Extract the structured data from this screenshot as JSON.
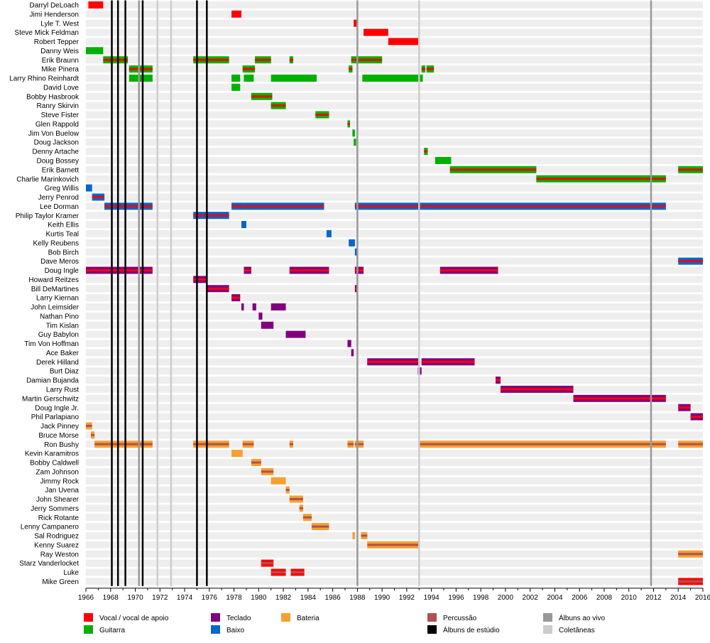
{
  "chart_data": {
    "type": "timeline",
    "xlim": [
      1966,
      2016
    ],
    "x_ticks": [
      "1966",
      "1968",
      "1970",
      "1972",
      "1974",
      "1976",
      "1978",
      "1980",
      "1982",
      "1984",
      "1986",
      "1988",
      "1990",
      "1992",
      "1994",
      "1996",
      "1998",
      "2000",
      "2002",
      "2004",
      "2006",
      "2008",
      "2010",
      "2012",
      "2014",
      "2016"
    ],
    "colors": {
      "vocal": "#ff0000",
      "guitar": "#00b000",
      "keys": "#800080",
      "bass": "#0066cc",
      "drums": "#f5a030",
      "percussion": "#b05050",
      "studio": "#000000",
      "live": "#999999",
      "compilation": "#cccccc",
      "row_bg": "#eeeeee"
    },
    "legend": [
      {
        "label": "Vocal / vocal de apoio",
        "color": "vocal"
      },
      {
        "label": "Guitarra",
        "color": "guitar"
      },
      {
        "label": "Teclado",
        "color": "keys"
      },
      {
        "label": "Baixo",
        "color": "bass"
      },
      {
        "label": "Bateria",
        "color": "drums"
      },
      {
        "label": "Percussão",
        "color": "percussion"
      },
      {
        "label": "Álbuns de estúdio",
        "color": "studio"
      },
      {
        "label": "Álbuns ao vivo",
        "color": "live"
      },
      {
        "label": "Coletâneas",
        "color": "compilation"
      }
    ],
    "studio_albums": [
      1968.1,
      1968.6,
      1969.2,
      1970.6,
      1975.0,
      1975.8
    ],
    "live_albums": [
      1970.3,
      1988.0,
      2011.8
    ],
    "compilations": [
      1971.8,
      1972.9,
      1993.0
    ],
    "members": [
      {
        "name": "Darryl DeLoach",
        "bars": [
          {
            "s": 1966.2,
            "e": 1967.4,
            "m": "vocal"
          }
        ]
      },
      {
        "name": "Jimi Henderson",
        "bars": [
          {
            "s": 1977.8,
            "e": 1978.6,
            "m": "vocal"
          }
        ]
      },
      {
        "name": "Lyle T. West",
        "bars": [
          {
            "s": 1987.7,
            "e": 1988.0,
            "m": "vocal"
          }
        ]
      },
      {
        "name": "Steve Mick Feldman",
        "bars": [
          {
            "s": 1988.5,
            "e": 1990.5,
            "m": "vocal"
          }
        ]
      },
      {
        "name": "Robert Tepper",
        "bars": [
          {
            "s": 1990.5,
            "e": 1993.0,
            "m": "vocal"
          }
        ]
      },
      {
        "name": "Danny Weis",
        "bars": [
          {
            "s": 1966.0,
            "e": 1967.4,
            "m": "guitar"
          }
        ]
      },
      {
        "name": "Erik Braunn",
        "bars": [
          {
            "s": 1967.4,
            "e": 1969.4,
            "m": "guitar",
            "a": "vocal"
          },
          {
            "s": 1974.7,
            "e": 1977.6,
            "m": "guitar",
            "a": "vocal"
          },
          {
            "s": 1979.7,
            "e": 1981.0,
            "m": "guitar",
            "a": "vocal"
          },
          {
            "s": 1982.5,
            "e": 1982.8,
            "m": "guitar",
            "a": "vocal"
          },
          {
            "s": 1987.5,
            "e": 1987.7,
            "m": "guitar",
            "a": "vocal"
          },
          {
            "s": 1987.7,
            "e": 1990.0,
            "m": "guitar",
            "a": "vocal"
          }
        ]
      },
      {
        "name": "Mike Pinera",
        "bars": [
          {
            "s": 1969.5,
            "e": 1971.4,
            "m": "guitar",
            "a": "vocal"
          },
          {
            "s": 1978.7,
            "e": 1979.7,
            "m": "guitar",
            "a": "vocal"
          },
          {
            "s": 1987.3,
            "e": 1987.6,
            "m": "guitar",
            "a": "vocal"
          },
          {
            "s": 1993.2,
            "e": 1993.5,
            "m": "guitar",
            "a": "vocal"
          },
          {
            "s": 1993.6,
            "e": 1994.2,
            "m": "guitar",
            "a": "vocal"
          }
        ]
      },
      {
        "name": "Larry Rhino Reinhardt",
        "bars": [
          {
            "s": 1969.5,
            "e": 1971.4,
            "m": "guitar"
          },
          {
            "s": 1977.8,
            "e": 1978.5,
            "m": "guitar"
          },
          {
            "s": 1978.8,
            "e": 1979.6,
            "m": "guitar"
          },
          {
            "s": 1981.0,
            "e": 1984.7,
            "m": "guitar"
          },
          {
            "s": 1988.4,
            "e": 1993.3,
            "m": "guitar"
          }
        ]
      },
      {
        "name": "David Love",
        "bars": [
          {
            "s": 1977.8,
            "e": 1978.5,
            "m": "guitar"
          }
        ]
      },
      {
        "name": "Bobby Hasbrook",
        "bars": [
          {
            "s": 1979.4,
            "e": 1981.1,
            "m": "guitar",
            "a": "vocal"
          }
        ]
      },
      {
        "name": "Ranry Skirvin",
        "bars": [
          {
            "s": 1981.0,
            "e": 1982.2,
            "m": "guitar",
            "a": "vocal"
          }
        ]
      },
      {
        "name": "Steve Fister",
        "bars": [
          {
            "s": 1984.6,
            "e": 1985.7,
            "m": "guitar",
            "a": "vocal"
          }
        ]
      },
      {
        "name": "Glen Rappold",
        "bars": [
          {
            "s": 1987.2,
            "e": 1987.4,
            "m": "guitar",
            "a": "vocal"
          }
        ]
      },
      {
        "name": "Jim Von Buelow",
        "bars": [
          {
            "s": 1987.6,
            "e": 1987.8,
            "m": "guitar"
          }
        ]
      },
      {
        "name": "Doug Jackson",
        "bars": [
          {
            "s": 1987.7,
            "e": 1987.9,
            "m": "guitar"
          }
        ]
      },
      {
        "name": "Denny Artache",
        "bars": [
          {
            "s": 1993.4,
            "e": 1993.7,
            "m": "guitar",
            "a": "vocal"
          }
        ]
      },
      {
        "name": "Doug Bossey",
        "bars": [
          {
            "s": 1994.3,
            "e": 1995.6,
            "m": "guitar"
          }
        ]
      },
      {
        "name": "Erik Barnett",
        "bars": [
          {
            "s": 1995.5,
            "e": 2002.5,
            "m": "guitar",
            "a": "vocal"
          },
          {
            "s": 2014.0,
            "e": 2016.0,
            "m": "guitar",
            "a": "vocal"
          }
        ]
      },
      {
        "name": "Charlie Marinkovich",
        "bars": [
          {
            "s": 2002.5,
            "e": 2013.0,
            "m": "guitar",
            "a": "vocal"
          }
        ]
      },
      {
        "name": "Greg Willis",
        "bars": [
          {
            "s": 1966.0,
            "e": 1966.5,
            "m": "bass"
          }
        ]
      },
      {
        "name": "Jerry Penrod",
        "bars": [
          {
            "s": 1966.5,
            "e": 1967.5,
            "m": "bass",
            "a": "vocal"
          }
        ]
      },
      {
        "name": "Lee Dorman",
        "bars": [
          {
            "s": 1967.5,
            "e": 1971.4,
            "m": "bass",
            "a": "vocal"
          },
          {
            "s": 1977.8,
            "e": 1978.8,
            "m": "bass",
            "a": "vocal"
          },
          {
            "s": 1978.8,
            "e": 1985.3,
            "m": "bass",
            "a": "vocal"
          },
          {
            "s": 1987.8,
            "e": 2013.0,
            "m": "bass",
            "a": "vocal"
          }
        ]
      },
      {
        "name": "Philip Taylor Kramer",
        "bars": [
          {
            "s": 1974.7,
            "e": 1977.6,
            "m": "bass",
            "a": "vocal"
          }
        ]
      },
      {
        "name": "Keith Ellis",
        "bars": [
          {
            "s": 1978.6,
            "e": 1979.0,
            "m": "bass"
          }
        ]
      },
      {
        "name": "Kurtis Teal",
        "bars": [
          {
            "s": 1985.5,
            "e": 1985.9,
            "m": "bass"
          }
        ]
      },
      {
        "name": "Kelly Reubens",
        "bars": [
          {
            "s": 1987.3,
            "e": 1987.8,
            "m": "bass"
          }
        ]
      },
      {
        "name": "Bob Birch",
        "bars": [
          {
            "s": 1987.8,
            "e": 1988.0,
            "m": "bass"
          }
        ]
      },
      {
        "name": "Dave Meros",
        "bars": [
          {
            "s": 2014.0,
            "e": 2016.0,
            "m": "bass",
            "a": "vocal"
          }
        ]
      },
      {
        "name": "Doug Ingle",
        "bars": [
          {
            "s": 1966.0,
            "e": 1971.4,
            "m": "keys",
            "a": "vocal"
          },
          {
            "s": 1978.8,
            "e": 1979.4,
            "m": "keys",
            "a": "vocal"
          },
          {
            "s": 1982.5,
            "e": 1985.7,
            "m": "keys",
            "a": "vocal"
          },
          {
            "s": 1987.8,
            "e": 1988.5,
            "m": "keys",
            "a": "vocal"
          },
          {
            "s": 1994.7,
            "e": 1999.4,
            "m": "keys",
            "a": "vocal"
          }
        ]
      },
      {
        "name": "Howard Reitzes",
        "bars": [
          {
            "s": 1974.7,
            "e": 1975.8,
            "m": "keys",
            "a": "vocal"
          }
        ]
      },
      {
        "name": "Bill DeMartines",
        "bars": [
          {
            "s": 1975.8,
            "e": 1977.6,
            "m": "keys",
            "a": "vocal"
          },
          {
            "s": 1987.8,
            "e": 1988.0,
            "m": "keys",
            "a": "vocal"
          }
        ]
      },
      {
        "name": "Larry Kiernan",
        "bars": [
          {
            "s": 1977.8,
            "e": 1978.5,
            "m": "keys",
            "a": "vocal"
          }
        ]
      },
      {
        "name": "John Leimsider",
        "bars": [
          {
            "s": 1978.6,
            "e": 1978.8,
            "m": "keys"
          },
          {
            "s": 1979.5,
            "e": 1979.8,
            "m": "keys"
          },
          {
            "s": 1981.0,
            "e": 1982.2,
            "m": "keys"
          }
        ]
      },
      {
        "name": "Nathan Pino",
        "bars": [
          {
            "s": 1980.0,
            "e": 1980.3,
            "m": "keys"
          }
        ]
      },
      {
        "name": "Tim Kislan",
        "bars": [
          {
            "s": 1980.2,
            "e": 1981.2,
            "m": "keys"
          }
        ]
      },
      {
        "name": "Guy Babylon",
        "bars": [
          {
            "s": 1982.2,
            "e": 1983.8,
            "m": "keys"
          }
        ]
      },
      {
        "name": "Tim Von Hoffman",
        "bars": [
          {
            "s": 1987.2,
            "e": 1987.5,
            "m": "keys"
          }
        ]
      },
      {
        "name": "Ace Baker",
        "bars": [
          {
            "s": 1987.5,
            "e": 1987.7,
            "m": "keys"
          }
        ]
      },
      {
        "name": "Derek Hilland",
        "bars": [
          {
            "s": 1988.8,
            "e": 1993.0,
            "m": "keys",
            "a": "vocal"
          },
          {
            "s": 1993.2,
            "e": 1997.5,
            "m": "keys",
            "a": "vocal"
          }
        ]
      },
      {
        "name": "Burt Diaz",
        "bars": [
          {
            "s": 1992.9,
            "e": 1993.2,
            "m": "keys"
          }
        ]
      },
      {
        "name": "Damian Bujanda",
        "bars": [
          {
            "s": 1999.2,
            "e": 1999.6,
            "m": "keys",
            "a": "vocal"
          }
        ]
      },
      {
        "name": "Larry Rust",
        "bars": [
          {
            "s": 1999.6,
            "e": 2005.5,
            "m": "keys",
            "a": "vocal"
          }
        ]
      },
      {
        "name": "Martin Gerschwitz",
        "bars": [
          {
            "s": 2005.5,
            "e": 2013.0,
            "m": "keys",
            "a": "vocal"
          }
        ]
      },
      {
        "name": "Doug Ingle Jr.",
        "bars": [
          {
            "s": 2014.0,
            "e": 2015.0,
            "m": "keys",
            "a": "vocal"
          }
        ]
      },
      {
        "name": "Phil Parlapiano",
        "bars": [
          {
            "s": 2015.0,
            "e": 2016.0,
            "m": "keys",
            "a": "vocal"
          }
        ]
      },
      {
        "name": "Jack Pinney",
        "bars": [
          {
            "s": 1966.0,
            "e": 1966.5,
            "m": "drums",
            "a": "percussion"
          }
        ]
      },
      {
        "name": "Bruce Morse",
        "bars": [
          {
            "s": 1966.4,
            "e": 1966.7,
            "m": "drums",
            "a": "percussion"
          }
        ]
      },
      {
        "name": "Ron Bushy",
        "bars": [
          {
            "s": 1966.7,
            "e": 1971.4,
            "m": "drums",
            "a": "percussion"
          },
          {
            "s": 1974.7,
            "e": 1977.6,
            "m": "drums",
            "a": "percussion"
          },
          {
            "s": 1978.7,
            "e": 1979.6,
            "m": "drums",
            "a": "percussion"
          },
          {
            "s": 1982.5,
            "e": 1982.8,
            "m": "drums",
            "a": "percussion"
          },
          {
            "s": 1987.2,
            "e": 1987.7,
            "m": "drums",
            "a": "percussion"
          },
          {
            "s": 1987.8,
            "e": 1988.5,
            "m": "drums",
            "a": "percussion"
          },
          {
            "s": 1993.0,
            "e": 2013.0,
            "m": "drums",
            "a": "percussion"
          },
          {
            "s": 2014.0,
            "e": 2016.0,
            "m": "drums",
            "a": "percussion"
          }
        ]
      },
      {
        "name": "Kevin Karamitros",
        "bars": [
          {
            "s": 1977.8,
            "e": 1978.7,
            "m": "drums"
          }
        ]
      },
      {
        "name": "Bobby Caldwell",
        "bars": [
          {
            "s": 1979.4,
            "e": 1980.2,
            "m": "drums",
            "a": "percussion"
          }
        ]
      },
      {
        "name": "Zam Johnson",
        "bars": [
          {
            "s": 1980.2,
            "e": 1981.2,
            "m": "drums",
            "a": "percussion"
          }
        ]
      },
      {
        "name": "Jimmy Rock",
        "bars": [
          {
            "s": 1981.0,
            "e": 1982.2,
            "m": "drums"
          }
        ]
      },
      {
        "name": "Jan Uvena",
        "bars": [
          {
            "s": 1982.2,
            "e": 1982.5,
            "m": "drums",
            "a": "percussion"
          }
        ]
      },
      {
        "name": "John Shearer",
        "bars": [
          {
            "s": 1982.5,
            "e": 1983.6,
            "m": "drums",
            "a": "percussion"
          }
        ]
      },
      {
        "name": "Jerry Sommers",
        "bars": [
          {
            "s": 1983.3,
            "e": 1983.6,
            "m": "drums",
            "a": "percussion"
          }
        ]
      },
      {
        "name": "Rick Rotante",
        "bars": [
          {
            "s": 1983.6,
            "e": 1984.3,
            "m": "drums",
            "a": "percussion"
          }
        ]
      },
      {
        "name": "Lenny Campanero",
        "bars": [
          {
            "s": 1984.3,
            "e": 1985.7,
            "m": "drums",
            "a": "percussion"
          }
        ]
      },
      {
        "name": "Sal Rodriguez",
        "bars": [
          {
            "s": 1987.6,
            "e": 1987.8,
            "m": "drums"
          },
          {
            "s": 1988.3,
            "e": 1988.8,
            "m": "drums",
            "a": "percussion"
          }
        ]
      },
      {
        "name": "Kenny Suarez",
        "bars": [
          {
            "s": 1988.8,
            "e": 1993.0,
            "m": "drums",
            "a": "percussion"
          }
        ]
      },
      {
        "name": "Ray Weston",
        "bars": [
          {
            "s": 2014.0,
            "e": 2016.0,
            "m": "drums",
            "a": "percussion"
          }
        ]
      },
      {
        "name": "Starz Vanderlocket",
        "bars": [
          {
            "s": 1980.2,
            "e": 1981.2,
            "m": "vocal",
            "a": "percussion"
          }
        ]
      },
      {
        "name": "Luke",
        "bars": [
          {
            "s": 1981.0,
            "e": 1982.2,
            "m": "vocal",
            "a": "percussion"
          },
          {
            "s": 1982.6,
            "e": 1983.7,
            "m": "vocal",
            "a": "percussion"
          }
        ]
      },
      {
        "name": "Mike Green",
        "bars": [
          {
            "s": 2014.0,
            "e": 2016.0,
            "m": "vocal",
            "a": "percussion"
          }
        ]
      }
    ]
  }
}
